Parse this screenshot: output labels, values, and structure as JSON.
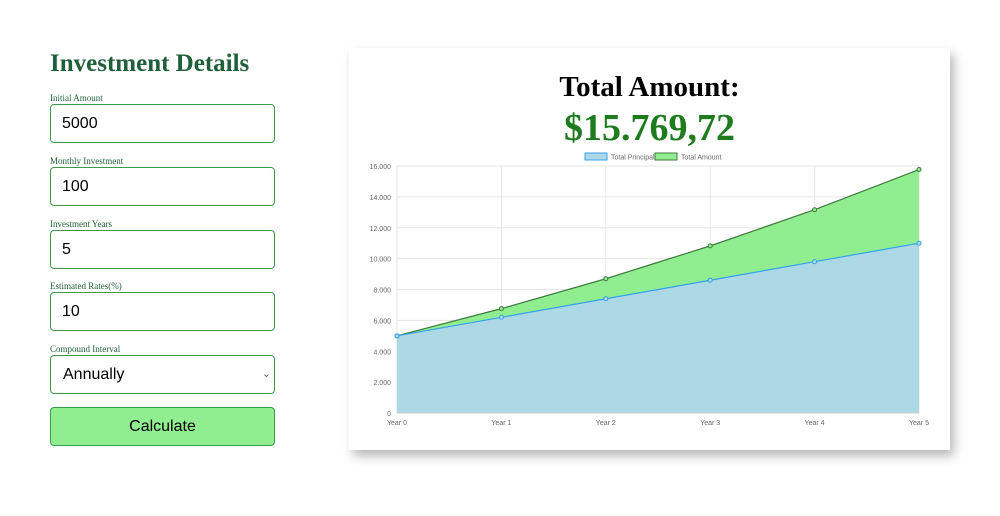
{
  "form": {
    "title": "Investment Details",
    "initial_amount": {
      "label": "Initial Amount",
      "value": "5000"
    },
    "monthly_investment": {
      "label": "Monthly Investment",
      "value": "100"
    },
    "investment_years": {
      "label": "Investment Years",
      "value": "5"
    },
    "estimated_rates": {
      "label": "Estimated Rates(%)",
      "value": "10"
    },
    "compound_interval": {
      "label": "Compound Interval",
      "value": "Annually"
    },
    "calculate_label": "Calculate"
  },
  "result": {
    "title": "Total Amount:",
    "value": "$15.769,72"
  },
  "colors": {
    "accent_green": "#1f5f3a",
    "button_green": "#90ee90",
    "total_green": "#1e7b1e",
    "principal_fill": "#add8e6",
    "principal_line": "#36a2eb",
    "amount_fill": "#90ee90",
    "amount_line": "#3e7a3e"
  },
  "chart_data": {
    "type": "area",
    "categories": [
      "Year 0",
      "Year 1",
      "Year 2",
      "Year 3",
      "Year 4",
      "Year 5"
    ],
    "series": [
      {
        "name": "Total Principal",
        "values": [
          5000,
          6200,
          7400,
          8600,
          9800,
          11000
        ]
      },
      {
        "name": "Total Amount",
        "values": [
          5000,
          6760,
          8696,
          10826,
          13168,
          15770
        ]
      }
    ],
    "ylim": [
      0,
      16000
    ],
    "yticks": [
      0,
      2000,
      4000,
      6000,
      8000,
      10000,
      12000,
      14000,
      16000
    ],
    "ytick_labels": [
      "0",
      "2.000",
      "4.000",
      "6.000",
      "8.000",
      "10.000",
      "12.000",
      "14.000",
      "16.000"
    ],
    "grid": true,
    "legend_placement": "top-center",
    "xlabel": "",
    "ylabel": ""
  }
}
